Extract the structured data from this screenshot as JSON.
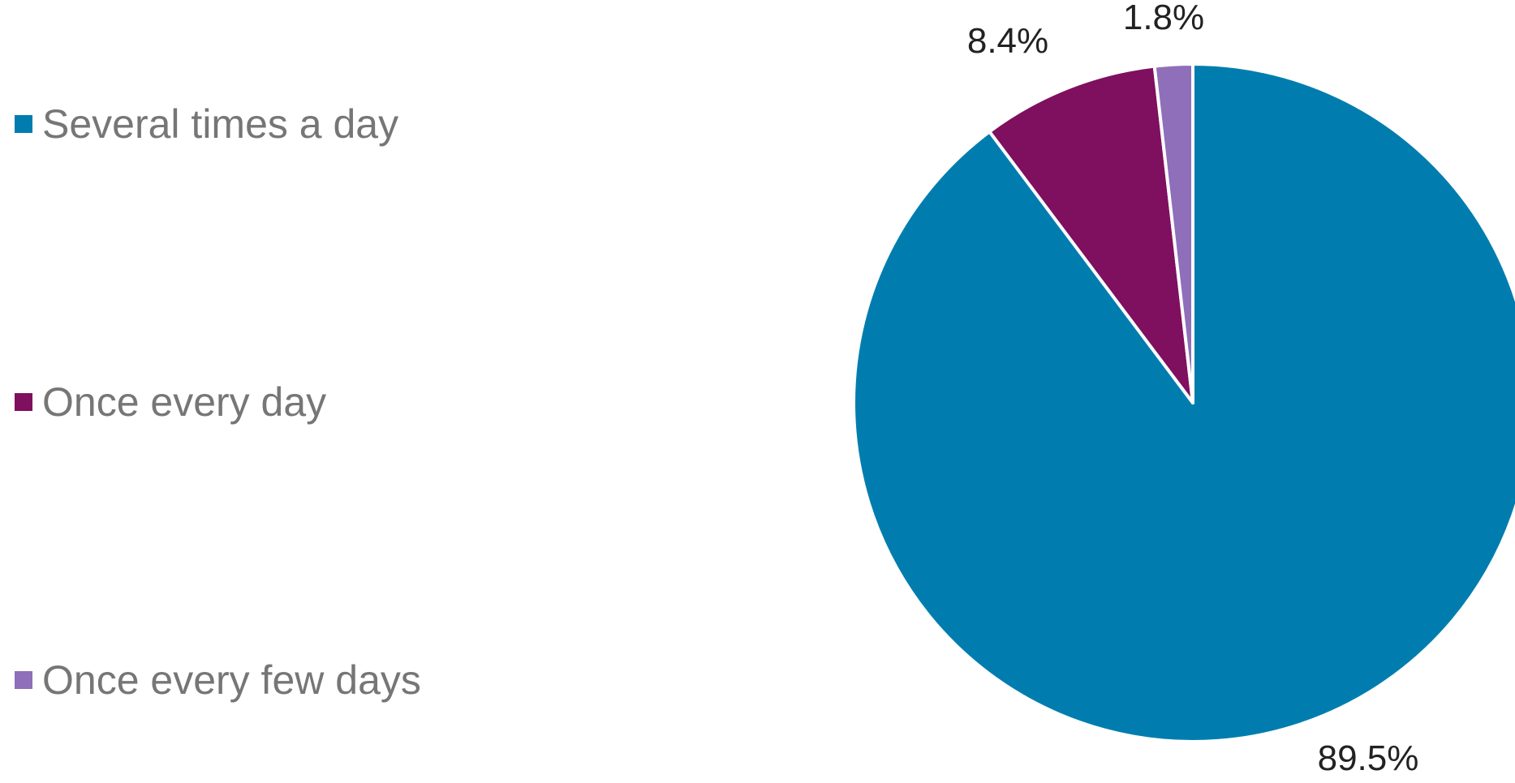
{
  "chart_data": {
    "type": "pie",
    "categories": [
      "Several times a day",
      "Once every day",
      "Once every few days"
    ],
    "values": [
      89.5,
      8.4,
      1.8
    ],
    "labels": [
      "89.5%",
      "8.4%",
      "1.8%"
    ],
    "colors": [
      "#007dae",
      "#7f0f5f",
      "#8f6fba"
    ],
    "legend_position": "left"
  }
}
